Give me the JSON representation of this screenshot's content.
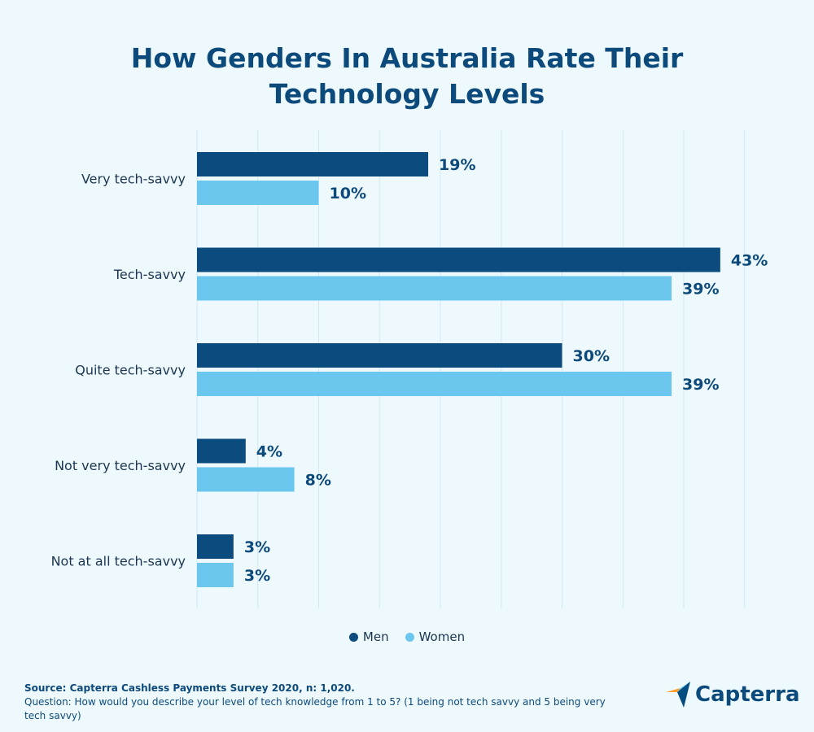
{
  "title_line1": "How Genders In Australia Rate Their",
  "title_line2": "Technology Levels",
  "colors": {
    "men": "#0b4b7d",
    "women": "#6cc7ee",
    "label": "#0d4a7c",
    "grid": "#cfe9f4",
    "bg": "#eef9fd"
  },
  "chart_data": {
    "type": "bar",
    "orientation": "horizontal",
    "categories": [
      "Very tech-savvy",
      "Tech-savvy",
      "Quite tech-savvy",
      "Not very tech-savvy",
      "Not at all tech-savvy"
    ],
    "series": [
      {
        "name": "Men",
        "values": [
          19,
          43,
          30,
          4,
          3
        ],
        "labels": [
          "19%",
          "43%",
          "30%",
          "4%",
          "3%"
        ]
      },
      {
        "name": "Women",
        "values": [
          10,
          39,
          39,
          8,
          3
        ],
        "labels": [
          "10%",
          "39%",
          "39%",
          "8%",
          "3%"
        ]
      }
    ],
    "xlim": [
      0,
      45
    ],
    "grid": true,
    "legend_position": "bottom-center"
  },
  "legend": {
    "men_label": "Men",
    "women_label": "Women"
  },
  "footer": {
    "source": "Source: Capterra Cashless Payments Survey 2020, n: 1,020.",
    "question": "Question: How would you describe your level of tech knowledge from 1 to 5? (1 being not tech savvy and 5 being very tech savvy)"
  },
  "logo": {
    "text": "Capterra"
  }
}
